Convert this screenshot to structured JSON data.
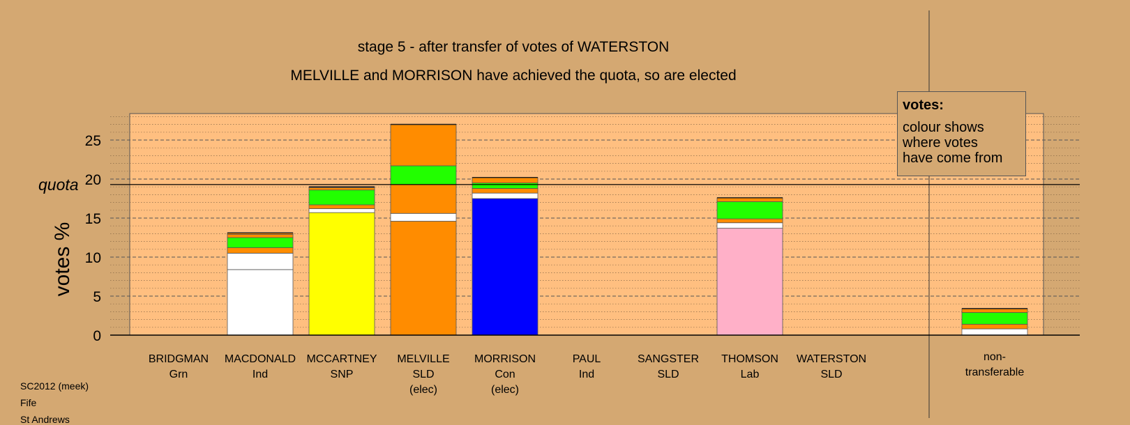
{
  "chart_data": {
    "type": "bar",
    "stacked": true,
    "title": "stage 5 - after transfer of votes of WATERSTON",
    "subtitle": "MELVILLE and MORRISON have achieved the quota, so are elected",
    "ylabel": "votes %",
    "ylim": [
      0,
      28.5
    ],
    "yticks": [
      "0",
      "5",
      "10",
      "15",
      "20",
      "25"
    ],
    "quota_label": "quota",
    "quota": 19.3,
    "grid": true,
    "categories": [
      {
        "name": "BRIDGMAN",
        "party": "Grn",
        "note": ""
      },
      {
        "name": "MACDONALD",
        "party": "Ind",
        "note": ""
      },
      {
        "name": "MCCARTNEY",
        "party": "SNP",
        "note": ""
      },
      {
        "name": "MELVILLE",
        "party": "SLD",
        "note": "(elec)"
      },
      {
        "name": "MORRISON",
        "party": "Con",
        "note": "(elec)"
      },
      {
        "name": "PAUL",
        "party": "Ind",
        "note": ""
      },
      {
        "name": "SANGSTER",
        "party": "SLD",
        "note": ""
      },
      {
        "name": "THOMSON",
        "party": "Lab",
        "note": ""
      },
      {
        "name": "WATERSTON",
        "party": "SLD",
        "note": ""
      }
    ],
    "bars": [
      [],
      [
        {
          "v": 8.4,
          "c": "#ffffff"
        },
        {
          "v": 2.1,
          "c": "#ffffff"
        },
        {
          "v": 0.7,
          "c": "#ff8c00"
        },
        {
          "v": 1.3,
          "c": "#22ff00"
        },
        {
          "v": 0.4,
          "c": "#ff8c00"
        },
        {
          "v": 0.2,
          "c": "#ff8c00"
        }
      ],
      [
        {
          "v": 15.7,
          "c": "#ffff00"
        },
        {
          "v": 0.5,
          "c": "#ffffff"
        },
        {
          "v": 0.5,
          "c": "#ff8c00"
        },
        {
          "v": 1.9,
          "c": "#22ff00"
        },
        {
          "v": 0.3,
          "c": "#ff8c00"
        },
        {
          "v": 0.1,
          "c": "#ff8c00"
        }
      ],
      [
        {
          "v": 14.6,
          "c": "#ff8c00"
        },
        {
          "v": 1.0,
          "c": "#ffffff"
        },
        {
          "v": 3.7,
          "c": "#ff8c00"
        },
        {
          "v": 2.4,
          "c": "#22ff00"
        },
        {
          "v": 5.3,
          "c": "#ff8c00"
        }
      ],
      [
        {
          "v": 17.5,
          "c": "#0000ff"
        },
        {
          "v": 0.7,
          "c": "#ffffff"
        },
        {
          "v": 0.6,
          "c": "#ff8c00"
        },
        {
          "v": 0.7,
          "c": "#22ff00"
        },
        {
          "v": 0.7,
          "c": "#ff8c00"
        }
      ],
      [],
      [],
      [
        {
          "v": 13.7,
          "c": "#ffb0c8"
        },
        {
          "v": 0.7,
          "c": "#ffffff"
        },
        {
          "v": 0.5,
          "c": "#ff8c00"
        },
        {
          "v": 2.2,
          "c": "#22ff00"
        },
        {
          "v": 0.5,
          "c": "#ff8c00"
        }
      ],
      []
    ],
    "nontransferable": {
      "label_line1": "non-",
      "label_line2": "transferable",
      "segments": [
        {
          "v": 0.8,
          "c": "#ffffff"
        },
        {
          "v": 0.6,
          "c": "#ff8c00"
        },
        {
          "v": 1.5,
          "c": "#22ff00"
        },
        {
          "v": 0.5,
          "c": "#ff8c00"
        }
      ]
    }
  },
  "legend": {
    "title": "votes:",
    "body": "colour shows\nwhere votes\nhave come from"
  },
  "meta": {
    "line1": "SC2012 (meek)",
    "line2": "Fife",
    "line3": "St Andrews"
  }
}
